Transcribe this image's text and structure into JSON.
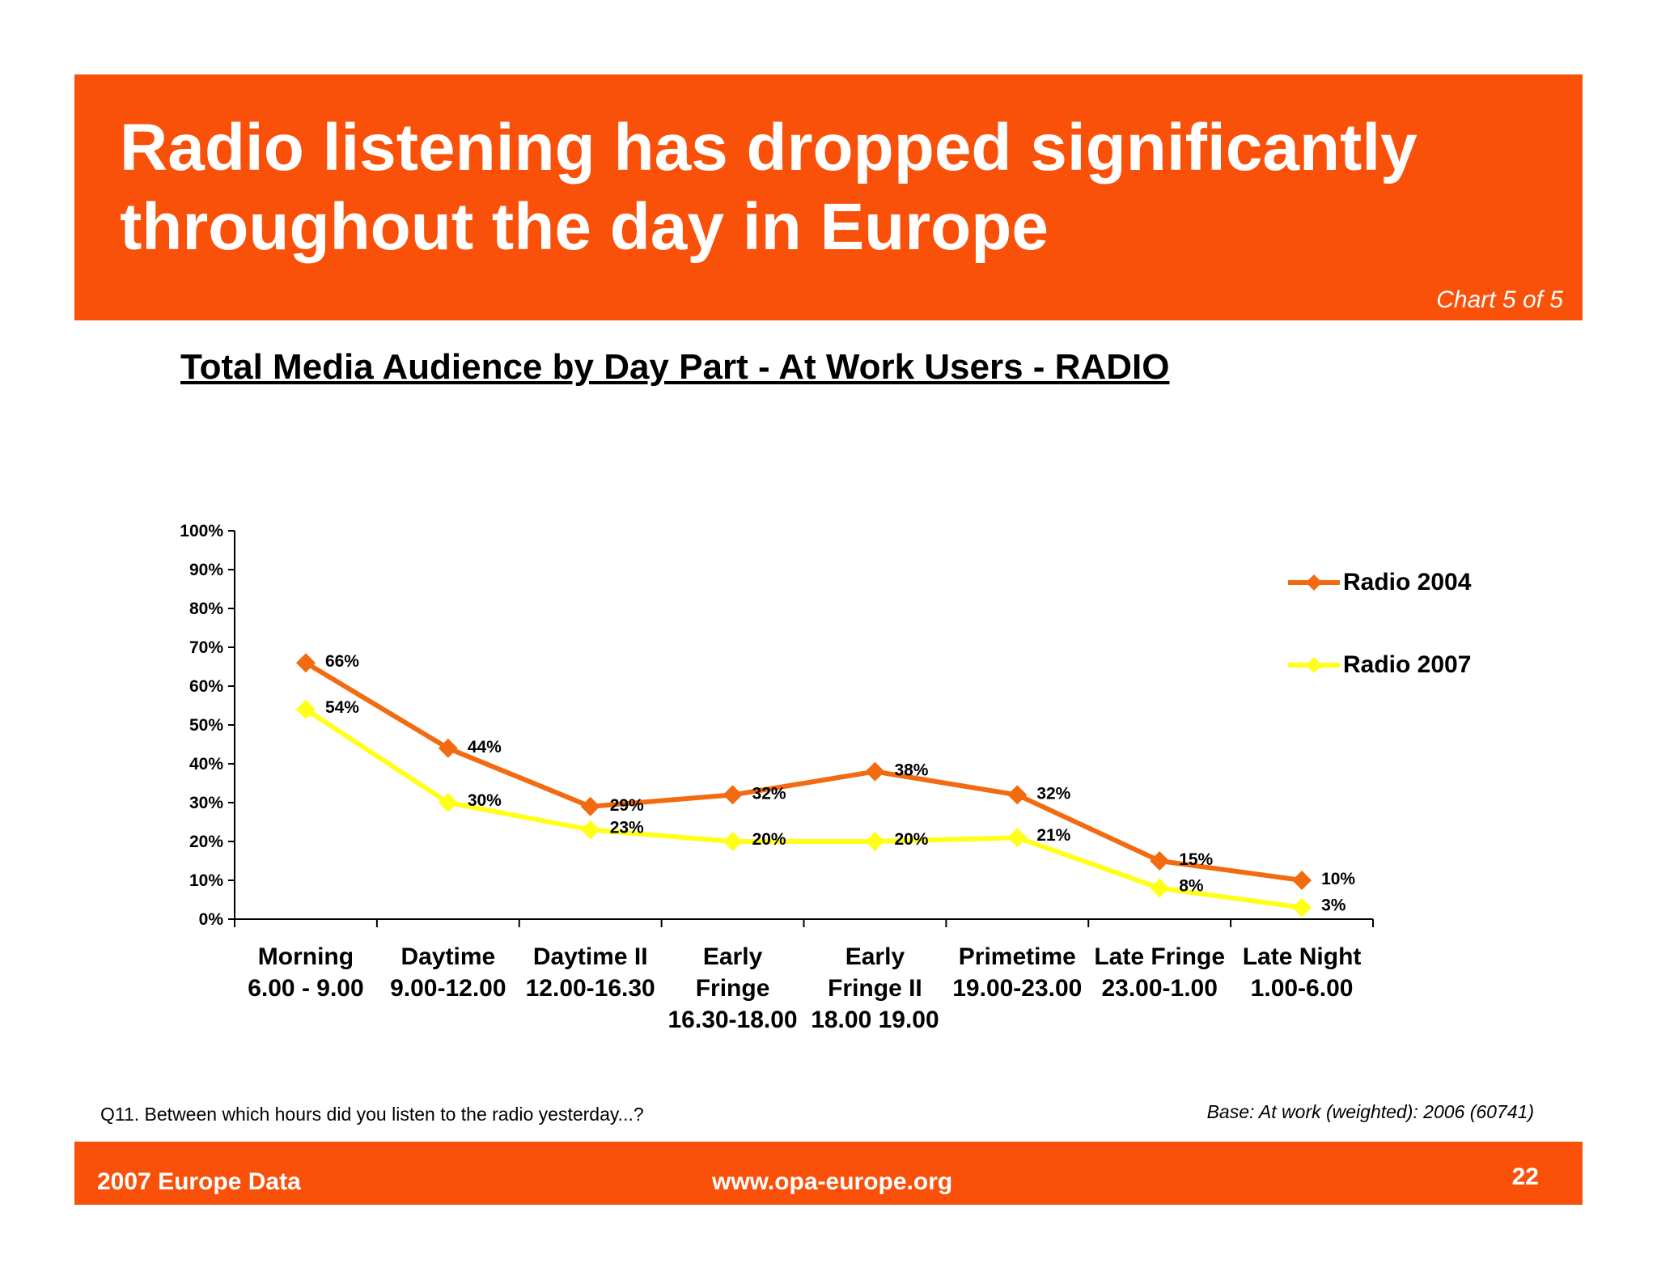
{
  "header": {
    "title_line1": "Radio listening has dropped significantly",
    "title_line2": "throughout the day in Europe",
    "chart_count": "Chart 5 of 5",
    "band_color": "#f9500a"
  },
  "footer": {
    "question": "Q11. Between which hours did you listen to the radio yesterday...?",
    "base": "Base: At work (weighted): 2006 (60741)",
    "left": "2007 Europe Data",
    "center": "www.opa-europe.org",
    "page_number": "22"
  },
  "chart_data": {
    "type": "line",
    "title": "Total Media Audience by Day Part - At Work Users - RADIO",
    "categories": [
      [
        "Morning",
        "6.00 - 9.00"
      ],
      [
        "Daytime",
        "9.00-12.00"
      ],
      [
        "Daytime II",
        "12.00-16.30"
      ],
      [
        "Early",
        "Fringe",
        "16.30-18.00"
      ],
      [
        "Early",
        "Fringe II",
        "18.00 19.00"
      ],
      [
        "Primetime",
        "19.00-23.00"
      ],
      [
        "Late Fringe",
        "23.00-1.00"
      ],
      [
        "Late Night",
        "1.00-6.00"
      ]
    ],
    "y_ticks": [
      "0%",
      "10%",
      "20%",
      "30%",
      "40%",
      "50%",
      "60%",
      "70%",
      "80%",
      "90%",
      "100%"
    ],
    "ylim": [
      0,
      100
    ],
    "series": [
      {
        "name": "Radio 2004",
        "color": "#f26b10",
        "values": [
          66,
          44,
          29,
          32,
          38,
          32,
          15,
          10
        ],
        "labels": [
          "66%",
          "44%",
          "29%",
          "32%",
          "38%",
          "32%",
          "15%",
          "10%"
        ]
      },
      {
        "name": "Radio 2007",
        "color": "#ffff19",
        "values": [
          54,
          30,
          23,
          20,
          20,
          21,
          8,
          3
        ],
        "labels": [
          "54%",
          "30%",
          "23%",
          "20%",
          "20%",
          "21%",
          "8%",
          "3%"
        ]
      }
    ],
    "legend_position": "right",
    "grid": false
  }
}
